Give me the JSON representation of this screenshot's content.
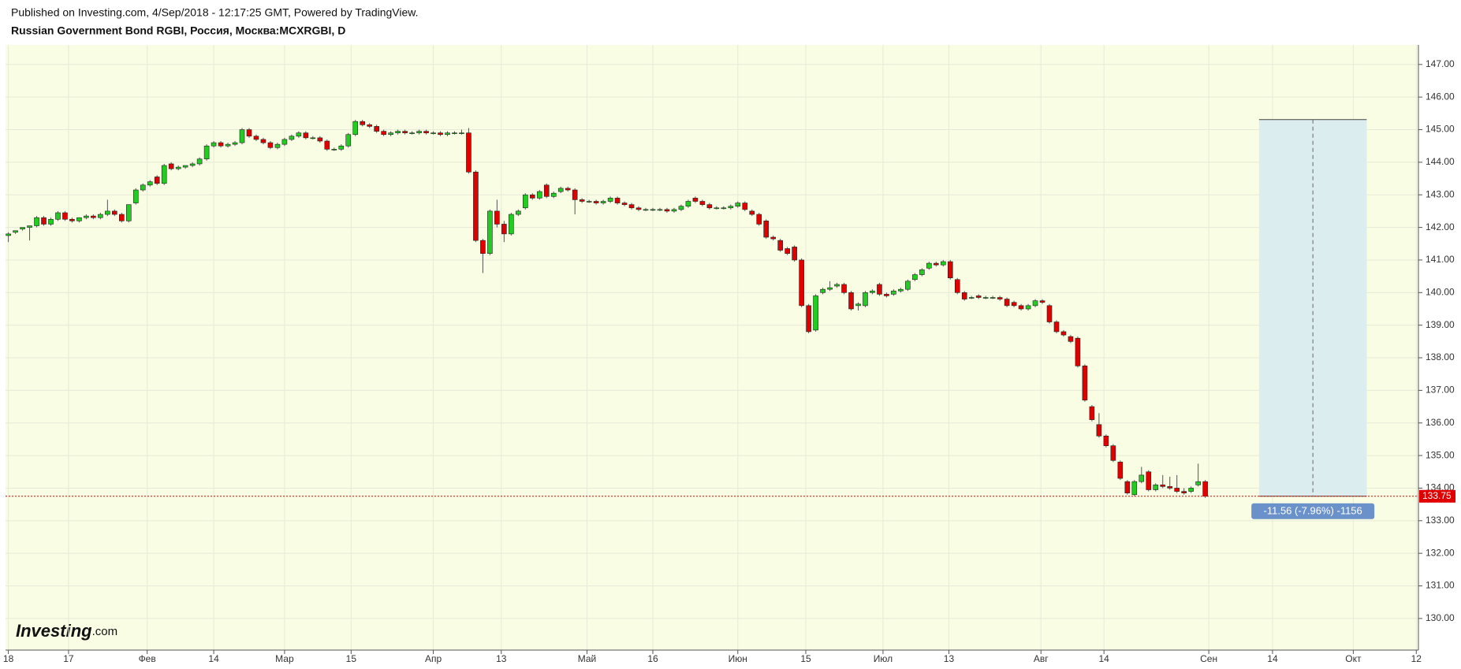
{
  "header": {
    "published": "Published on Investing.com, 4/Sep/2018 - 12:17:25 GMT, Powered by TradingView.",
    "title": "Russian Government Bond RGBI, Россия, Москва:MCXRGBI, D"
  },
  "logo": {
    "brand": "Investing",
    "suffix": ".com"
  },
  "chart_data": {
    "type": "candlestick",
    "ohlc": [
      [
        141.75,
        141.85,
        141.55,
        141.8
      ],
      [
        141.85,
        141.9,
        141.8,
        141.9
      ],
      [
        141.95,
        142.0,
        141.9,
        142.0
      ],
      [
        142.0,
        142.05,
        141.6,
        142.05
      ],
      [
        142.05,
        142.35,
        142.0,
        142.3
      ],
      [
        142.3,
        142.35,
        142.05,
        142.1
      ],
      [
        142.1,
        142.3,
        142.05,
        142.25
      ],
      [
        142.25,
        142.5,
        142.2,
        142.45
      ],
      [
        142.45,
        142.5,
        142.2,
        142.25
      ],
      [
        142.25,
        142.3,
        142.15,
        142.2
      ],
      [
        142.2,
        142.3,
        142.15,
        142.3
      ],
      [
        142.3,
        142.4,
        142.25,
        142.35
      ],
      [
        142.35,
        142.4,
        142.25,
        142.3
      ],
      [
        142.3,
        142.45,
        142.25,
        142.4
      ],
      [
        142.4,
        142.85,
        142.35,
        142.5
      ],
      [
        142.5,
        142.55,
        142.35,
        142.4
      ],
      [
        142.4,
        142.45,
        142.15,
        142.2
      ],
      [
        142.2,
        142.7,
        142.15,
        142.7
      ],
      [
        142.75,
        143.2,
        142.7,
        143.15
      ],
      [
        143.15,
        143.35,
        143.1,
        143.3
      ],
      [
        143.3,
        143.45,
        143.25,
        143.4
      ],
      [
        143.55,
        143.6,
        143.3,
        143.35
      ],
      [
        143.35,
        143.95,
        143.3,
        143.9
      ],
      [
        143.95,
        144.0,
        143.75,
        143.8
      ],
      [
        143.8,
        143.9,
        143.75,
        143.85
      ],
      [
        143.85,
        143.9,
        143.8,
        143.9
      ],
      [
        143.9,
        144.0,
        143.85,
        143.95
      ],
      [
        143.95,
        144.15,
        143.9,
        144.1
      ],
      [
        144.1,
        144.55,
        144.05,
        144.5
      ],
      [
        144.5,
        144.65,
        144.45,
        144.6
      ],
      [
        144.6,
        144.65,
        144.45,
        144.5
      ],
      [
        144.5,
        144.6,
        144.45,
        144.55
      ],
      [
        144.55,
        144.65,
        144.5,
        144.6
      ],
      [
        144.6,
        145.05,
        144.55,
        145.0
      ],
      [
        145.0,
        145.05,
        144.75,
        144.8
      ],
      [
        144.8,
        144.85,
        144.65,
        144.7
      ],
      [
        144.7,
        144.75,
        144.55,
        144.6
      ],
      [
        144.6,
        144.65,
        144.4,
        144.45
      ],
      [
        144.45,
        144.6,
        144.4,
        144.55
      ],
      [
        144.55,
        144.75,
        144.5,
        144.7
      ],
      [
        144.7,
        144.85,
        144.65,
        144.8
      ],
      [
        144.8,
        144.95,
        144.75,
        144.9
      ],
      [
        144.9,
        144.95,
        144.7,
        144.75
      ],
      [
        144.75,
        144.8,
        144.7,
        144.75
      ],
      [
        144.75,
        144.8,
        144.6,
        144.65
      ],
      [
        144.65,
        144.7,
        144.35,
        144.4
      ],
      [
        144.4,
        144.45,
        144.35,
        144.4
      ],
      [
        144.4,
        144.55,
        144.35,
        144.5
      ],
      [
        144.5,
        144.9,
        144.45,
        144.85
      ],
      [
        144.85,
        145.3,
        144.8,
        145.25
      ],
      [
        145.25,
        145.3,
        145.1,
        145.15
      ],
      [
        145.15,
        145.2,
        145.05,
        145.1
      ],
      [
        145.1,
        145.15,
        144.9,
        144.95
      ],
      [
        144.95,
        145.0,
        144.8,
        144.85
      ],
      [
        144.85,
        144.95,
        144.8,
        144.9
      ],
      [
        144.9,
        145.0,
        144.85,
        144.95
      ],
      [
        144.95,
        145.0,
        144.85,
        144.9
      ],
      [
        144.9,
        144.95,
        144.85,
        144.9
      ],
      [
        144.9,
        145.0,
        144.85,
        144.95
      ],
      [
        144.95,
        145.0,
        144.85,
        144.9
      ],
      [
        144.9,
        144.95,
        144.85,
        144.9
      ],
      [
        144.9,
        144.95,
        144.8,
        144.85
      ],
      [
        144.85,
        144.95,
        144.8,
        144.9
      ],
      [
        144.9,
        144.95,
        144.85,
        144.9
      ],
      [
        144.9,
        145.0,
        144.85,
        144.9
      ],
      [
        144.9,
        145.05,
        143.65,
        143.7
      ],
      [
        143.7,
        143.75,
        141.55,
        141.6
      ],
      [
        141.6,
        141.65,
        140.6,
        141.2
      ],
      [
        141.2,
        142.55,
        141.15,
        142.5
      ],
      [
        142.5,
        142.85,
        142.0,
        142.1
      ],
      [
        142.1,
        142.2,
        141.55,
        141.8
      ],
      [
        141.8,
        142.45,
        141.75,
        142.4
      ],
      [
        142.4,
        142.55,
        142.35,
        142.5
      ],
      [
        142.6,
        143.05,
        142.55,
        143.0
      ],
      [
        143.0,
        143.05,
        142.85,
        142.9
      ],
      [
        142.9,
        143.15,
        142.85,
        143.1
      ],
      [
        143.3,
        143.35,
        142.9,
        142.95
      ],
      [
        142.95,
        143.1,
        142.9,
        143.05
      ],
      [
        143.1,
        143.25,
        143.05,
        143.2
      ],
      [
        143.2,
        143.25,
        143.1,
        143.15
      ],
      [
        143.15,
        143.2,
        142.4,
        142.85
      ],
      [
        142.85,
        142.9,
        142.75,
        142.8
      ],
      [
        142.8,
        142.85,
        142.75,
        142.8
      ],
      [
        142.8,
        142.85,
        142.7,
        142.75
      ],
      [
        142.75,
        142.85,
        142.7,
        142.8
      ],
      [
        142.8,
        142.95,
        142.75,
        142.9
      ],
      [
        142.9,
        142.95,
        142.7,
        142.75
      ],
      [
        142.75,
        142.8,
        142.65,
        142.7
      ],
      [
        142.7,
        142.75,
        142.55,
        142.6
      ],
      [
        142.6,
        142.65,
        142.5,
        142.55
      ],
      [
        142.55,
        142.6,
        142.5,
        142.55
      ],
      [
        142.55,
        142.6,
        142.5,
        142.55
      ],
      [
        142.55,
        142.6,
        142.5,
        142.55
      ],
      [
        142.55,
        142.6,
        142.45,
        142.5
      ],
      [
        142.5,
        142.6,
        142.45,
        142.55
      ],
      [
        142.55,
        142.7,
        142.5,
        142.65
      ],
      [
        142.65,
        142.85,
        142.6,
        142.8
      ],
      [
        142.9,
        142.95,
        142.75,
        142.8
      ],
      [
        142.8,
        142.85,
        142.65,
        142.7
      ],
      [
        142.7,
        142.75,
        142.55,
        142.6
      ],
      [
        142.6,
        142.65,
        142.55,
        142.6
      ],
      [
        142.6,
        142.65,
        142.55,
        142.6
      ],
      [
        142.6,
        142.7,
        142.55,
        142.65
      ],
      [
        142.65,
        142.8,
        142.6,
        142.75
      ],
      [
        142.75,
        142.8,
        142.5,
        142.55
      ],
      [
        142.5,
        142.55,
        142.35,
        142.4
      ],
      [
        142.4,
        142.45,
        142.05,
        142.1
      ],
      [
        142.2,
        142.25,
        141.65,
        141.7
      ],
      [
        141.7,
        141.75,
        141.6,
        141.65
      ],
      [
        141.6,
        141.65,
        141.25,
        141.3
      ],
      [
        141.35,
        141.4,
        141.15,
        141.2
      ],
      [
        141.4,
        141.45,
        140.95,
        141.0
      ],
      [
        141.0,
        141.05,
        139.55,
        139.6
      ],
      [
        139.6,
        139.65,
        138.75,
        138.8
      ],
      [
        138.85,
        139.95,
        138.8,
        139.9
      ],
      [
        140.0,
        140.15,
        139.95,
        140.1
      ],
      [
        140.1,
        140.35,
        140.05,
        140.15
      ],
      [
        140.2,
        140.3,
        140.15,
        140.25
      ],
      [
        140.25,
        140.3,
        139.95,
        140.0
      ],
      [
        140.0,
        140.05,
        139.45,
        139.5
      ],
      [
        139.6,
        139.7,
        139.45,
        139.65
      ],
      [
        139.6,
        140.05,
        139.55,
        140.0
      ],
      [
        140.0,
        140.1,
        139.95,
        140.05
      ],
      [
        140.25,
        140.3,
        139.9,
        139.95
      ],
      [
        139.95,
        140.0,
        139.85,
        139.9
      ],
      [
        139.95,
        140.1,
        139.9,
        140.05
      ],
      [
        140.05,
        140.15,
        140.0,
        140.1
      ],
      [
        140.1,
        140.4,
        140.05,
        140.35
      ],
      [
        140.4,
        140.6,
        140.35,
        140.55
      ],
      [
        140.55,
        140.75,
        140.5,
        140.7
      ],
      [
        140.75,
        140.95,
        140.7,
        140.9
      ],
      [
        140.9,
        140.95,
        140.8,
        140.85
      ],
      [
        140.85,
        141.0,
        140.8,
        140.95
      ],
      [
        140.95,
        141.0,
        140.4,
        140.45
      ],
      [
        140.4,
        140.45,
        139.95,
        140.0
      ],
      [
        140.0,
        140.05,
        139.75,
        139.8
      ],
      [
        139.85,
        139.9,
        139.8,
        139.85
      ],
      [
        139.9,
        139.95,
        139.8,
        139.85
      ],
      [
        139.85,
        139.9,
        139.8,
        139.85
      ],
      [
        139.85,
        139.9,
        139.8,
        139.85
      ],
      [
        139.85,
        139.9,
        139.75,
        139.8
      ],
      [
        139.8,
        139.85,
        139.55,
        139.6
      ],
      [
        139.7,
        139.75,
        139.55,
        139.6
      ],
      [
        139.6,
        139.65,
        139.45,
        139.5
      ],
      [
        139.5,
        139.65,
        139.45,
        139.6
      ],
      [
        139.6,
        139.8,
        139.55,
        139.75
      ],
      [
        139.75,
        139.8,
        139.65,
        139.7
      ],
      [
        139.6,
        139.65,
        139.05,
        139.1
      ],
      [
        139.1,
        139.15,
        138.75,
        138.8
      ],
      [
        138.8,
        138.85,
        138.65,
        138.7
      ],
      [
        138.65,
        138.7,
        138.45,
        138.5
      ],
      [
        138.6,
        138.65,
        137.7,
        137.75
      ],
      [
        137.75,
        137.8,
        136.65,
        136.7
      ],
      [
        136.5,
        136.55,
        136.05,
        136.1
      ],
      [
        135.95,
        136.3,
        135.55,
        135.6
      ],
      [
        135.6,
        135.65,
        135.25,
        135.3
      ],
      [
        135.3,
        135.35,
        134.8,
        134.85
      ],
      [
        134.8,
        134.85,
        134.25,
        134.3
      ],
      [
        134.2,
        134.25,
        133.8,
        133.85
      ],
      [
        133.8,
        134.25,
        133.75,
        134.2
      ],
      [
        134.2,
        134.65,
        134.15,
        134.4
      ],
      [
        134.5,
        134.55,
        133.9,
        133.95
      ],
      [
        133.95,
        134.15,
        133.9,
        134.1
      ],
      [
        134.1,
        134.4,
        134.0,
        134.05
      ],
      [
        134.05,
        134.35,
        133.95,
        134.0
      ],
      [
        134.0,
        134.4,
        133.85,
        133.9
      ],
      [
        133.9,
        134.0,
        133.8,
        133.85
      ],
      [
        133.9,
        134.05,
        133.85,
        134.0
      ],
      [
        134.1,
        134.75,
        134.05,
        134.2
      ],
      [
        134.2,
        134.25,
        133.7,
        133.75
      ]
    ],
    "up_color": "#22cc22",
    "down_color": "#e00000",
    "xlim": [
      -0.4,
      199.1
    ],
    "xticks": [
      {
        "value": 0,
        "label": "18"
      },
      {
        "value": 8.5,
        "label": "17"
      },
      {
        "value": 19.6,
        "label": "Фев"
      },
      {
        "value": 29,
        "label": "14"
      },
      {
        "value": 39,
        "label": "Мар"
      },
      {
        "value": 48.4,
        "label": "15"
      },
      {
        "value": 60,
        "label": "Апр"
      },
      {
        "value": 69.6,
        "label": "13"
      },
      {
        "value": 81.7,
        "label": "Май"
      },
      {
        "value": 91,
        "label": "16"
      },
      {
        "value": 103,
        "label": "Июн"
      },
      {
        "value": 112.6,
        "label": "15"
      },
      {
        "value": 123.5,
        "label": "Июл"
      },
      {
        "value": 132.8,
        "label": "13"
      },
      {
        "value": 145.8,
        "label": "Авг"
      },
      {
        "value": 154.7,
        "label": "14"
      },
      {
        "value": 169.5,
        "label": "Сен"
      },
      {
        "value": 178.5,
        "label": "14"
      },
      {
        "value": 189.9,
        "label": "Окт"
      },
      {
        "value": 198.8,
        "label": "12"
      }
    ],
    "ylim": [
      129.03,
      147.6
    ],
    "yticks": [
      {
        "value": 130,
        "label": "130.00"
      },
      {
        "value": 131,
        "label": "131.00"
      },
      {
        "value": 132,
        "label": "132.00"
      },
      {
        "value": 133,
        "label": "133.00"
      },
      {
        "value": 134,
        "label": "134.00"
      },
      {
        "value": 135,
        "label": "135.00"
      },
      {
        "value": 136,
        "label": "136.00"
      },
      {
        "value": 137,
        "label": "137.00"
      },
      {
        "value": 138,
        "label": "138.00"
      },
      {
        "value": 139,
        "label": "139.00"
      },
      {
        "value": 140,
        "label": "140.00"
      },
      {
        "value": 141,
        "label": "141.00"
      },
      {
        "value": 142,
        "label": "142.00"
      },
      {
        "value": 143,
        "label": "143.00"
      },
      {
        "value": 144,
        "label": "144.00"
      },
      {
        "value": 145,
        "label": "145.00"
      },
      {
        "value": 146,
        "label": "146.00"
      },
      {
        "value": 147,
        "label": "147.00"
      }
    ],
    "grid": true,
    "last_price": 133.75,
    "last_price_color": "#e00000",
    "measure": {
      "top": 145.31,
      "bottom": 133.75,
      "label": "-11.56 (-7.96%) -1156"
    }
  }
}
